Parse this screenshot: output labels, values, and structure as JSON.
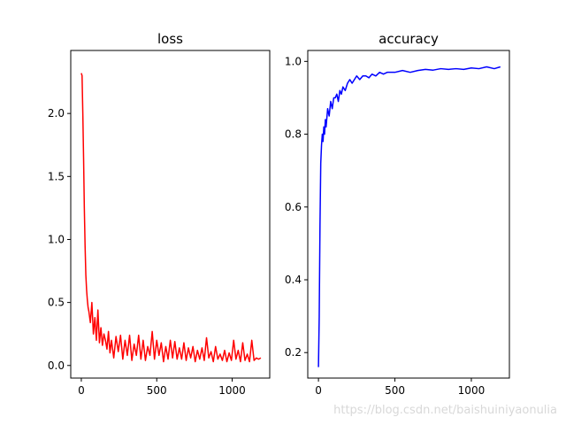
{
  "watermark": "https://blog.csdn.net/baishuiniyaonulia",
  "colors": {
    "loss": "#ff0000",
    "accuracy": "#0000ff",
    "axes": "#000000"
  },
  "chart_data": [
    {
      "type": "line",
      "title": "loss",
      "xlabel": "",
      "ylabel": "",
      "xlim": [
        -70,
        1249
      ],
      "ylim": [
        -0.1,
        2.5
      ],
      "xticks": [
        0,
        500,
        1000
      ],
      "xtick_labels": [
        "0",
        "500",
        "1000"
      ],
      "yticks": [
        0.0,
        0.5,
        1.0,
        1.5,
        2.0
      ],
      "ytick_labels": [
        "0.0",
        "0.5",
        "1.0",
        "1.5",
        "2.0"
      ],
      "grid": false,
      "series": [
        {
          "color": "#ff0000",
          "x": [
            0,
            5,
            10,
            15,
            20,
            25,
            30,
            35,
            40,
            45,
            50,
            60,
            70,
            80,
            90,
            100,
            110,
            120,
            130,
            140,
            150,
            160,
            170,
            180,
            190,
            200,
            215,
            230,
            245,
            260,
            275,
            290,
            305,
            320,
            335,
            350,
            365,
            380,
            395,
            410,
            425,
            440,
            455,
            470,
            485,
            500,
            515,
            530,
            545,
            560,
            575,
            590,
            605,
            620,
            635,
            650,
            665,
            680,
            695,
            710,
            725,
            740,
            755,
            770,
            785,
            800,
            815,
            830,
            845,
            860,
            875,
            890,
            905,
            920,
            935,
            950,
            965,
            980,
            995,
            1010,
            1025,
            1040,
            1055,
            1070,
            1085,
            1100,
            1115,
            1130,
            1145,
            1160,
            1175,
            1190
          ],
          "y": [
            2.32,
            2.3,
            2.0,
            1.65,
            1.25,
            0.95,
            0.72,
            0.6,
            0.52,
            0.46,
            0.43,
            0.34,
            0.5,
            0.25,
            0.38,
            0.2,
            0.44,
            0.18,
            0.3,
            0.16,
            0.25,
            0.2,
            0.13,
            0.27,
            0.1,
            0.2,
            0.06,
            0.23,
            0.11,
            0.24,
            0.05,
            0.2,
            0.08,
            0.24,
            0.04,
            0.17,
            0.08,
            0.24,
            0.05,
            0.2,
            0.04,
            0.15,
            0.08,
            0.27,
            0.05,
            0.2,
            0.08,
            0.18,
            0.03,
            0.15,
            0.05,
            0.2,
            0.06,
            0.19,
            0.05,
            0.14,
            0.05,
            0.18,
            0.04,
            0.14,
            0.06,
            0.15,
            0.03,
            0.12,
            0.05,
            0.14,
            0.04,
            0.22,
            0.06,
            0.11,
            0.03,
            0.15,
            0.05,
            0.09,
            0.04,
            0.12,
            0.03,
            0.1,
            0.04,
            0.2,
            0.05,
            0.12,
            0.03,
            0.18,
            0.04,
            0.09,
            0.03,
            0.2,
            0.04,
            0.06,
            0.05,
            0.06
          ]
        }
      ]
    },
    {
      "type": "line",
      "title": "accuracy",
      "xlabel": "",
      "ylabel": "",
      "xlim": [
        -70,
        1249
      ],
      "ylim": [
        0.13,
        1.03
      ],
      "xticks": [
        0,
        500,
        1000
      ],
      "xtick_labels": [
        "0",
        "500",
        "1000"
      ],
      "yticks": [
        0.2,
        0.4,
        0.6,
        0.8,
        1.0
      ],
      "ytick_labels": [
        "0.2",
        "0.4",
        "0.6",
        "0.8",
        "1.0"
      ],
      "grid": false,
      "series": [
        {
          "color": "#0000ff",
          "x": [
            0,
            5,
            10,
            15,
            20,
            25,
            30,
            35,
            40,
            45,
            50,
            60,
            70,
            80,
            90,
            100,
            110,
            120,
            130,
            140,
            150,
            160,
            175,
            190,
            205,
            220,
            235,
            250,
            270,
            290,
            310,
            330,
            350,
            375,
            400,
            425,
            450,
            500,
            550,
            600,
            650,
            700,
            750,
            800,
            850,
            900,
            950,
            1000,
            1050,
            1100,
            1150,
            1190
          ],
          "y": [
            0.16,
            0.3,
            0.55,
            0.72,
            0.77,
            0.8,
            0.78,
            0.82,
            0.8,
            0.84,
            0.82,
            0.87,
            0.85,
            0.89,
            0.87,
            0.9,
            0.9,
            0.91,
            0.89,
            0.92,
            0.91,
            0.93,
            0.92,
            0.94,
            0.95,
            0.94,
            0.95,
            0.96,
            0.95,
            0.96,
            0.96,
            0.955,
            0.965,
            0.96,
            0.97,
            0.965,
            0.97,
            0.97,
            0.975,
            0.97,
            0.975,
            0.978,
            0.976,
            0.98,
            0.978,
            0.98,
            0.978,
            0.982,
            0.98,
            0.985,
            0.98,
            0.985
          ]
        }
      ]
    }
  ]
}
